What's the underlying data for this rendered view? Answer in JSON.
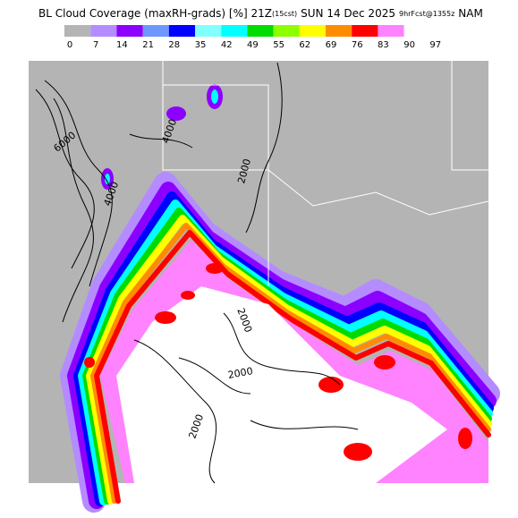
{
  "header": {
    "title": "BL Cloud Coverage (maxRH-grads) [%] 21Z",
    "time_note": "(15cst)",
    "date": "SUN 14 Dec 2025",
    "forecast": "9hrFcst@1355z",
    "model": "NAM"
  },
  "colorbar": {
    "labels": [
      0,
      7,
      14,
      21,
      28,
      35,
      42,
      49,
      55,
      62,
      69,
      76,
      83,
      90,
      97
    ],
    "colors": [
      "#b4b4b4",
      "#b48cff",
      "#8c00ff",
      "#6e96ff",
      "#0000ff",
      "#82ffff",
      "#00ffff",
      "#00dc00",
      "#8cff00",
      "#ffff00",
      "#ff8c00",
      "#ff0000",
      "#ff82ff",
      "#ffffff",
      "#ffffff"
    ]
  },
  "map": {
    "contour_labels": [
      "6000",
      "4000",
      "4000",
      "2000",
      "2000",
      "2000",
      "2000"
    ]
  }
}
